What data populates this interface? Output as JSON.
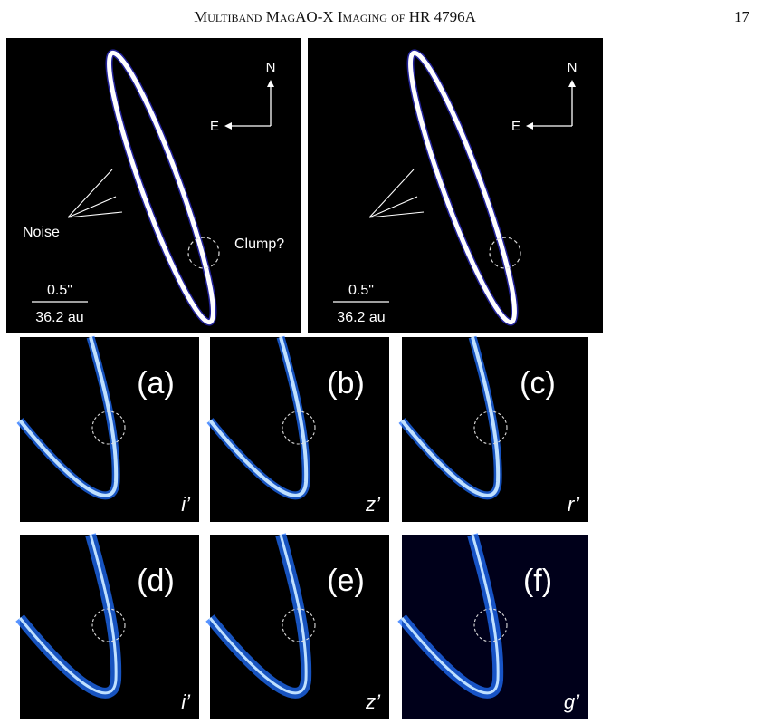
{
  "header": {
    "title": "Multiband MagAO-X Imaging of HR 4796A",
    "page": "17"
  },
  "overview_panels": [
    {
      "north": "N",
      "east": "E",
      "noise": "Noise",
      "clump": "Clump?",
      "scale_angle": "0.5\"",
      "scale_distance": "36.2 au"
    },
    {
      "north": "N",
      "east": "E",
      "scale_angle": "0.5\"",
      "scale_distance": "36.2 au"
    }
  ],
  "zoom_panels": [
    {
      "label": "(a)",
      "filter": "i’"
    },
    {
      "label": "(b)",
      "filter": "z’"
    },
    {
      "label": "(c)",
      "filter": "r’"
    },
    {
      "label": "(d)",
      "filter": "i’"
    },
    {
      "label": "(e)",
      "filter": "z’"
    },
    {
      "label": "(f)",
      "filter": "g’"
    }
  ]
}
